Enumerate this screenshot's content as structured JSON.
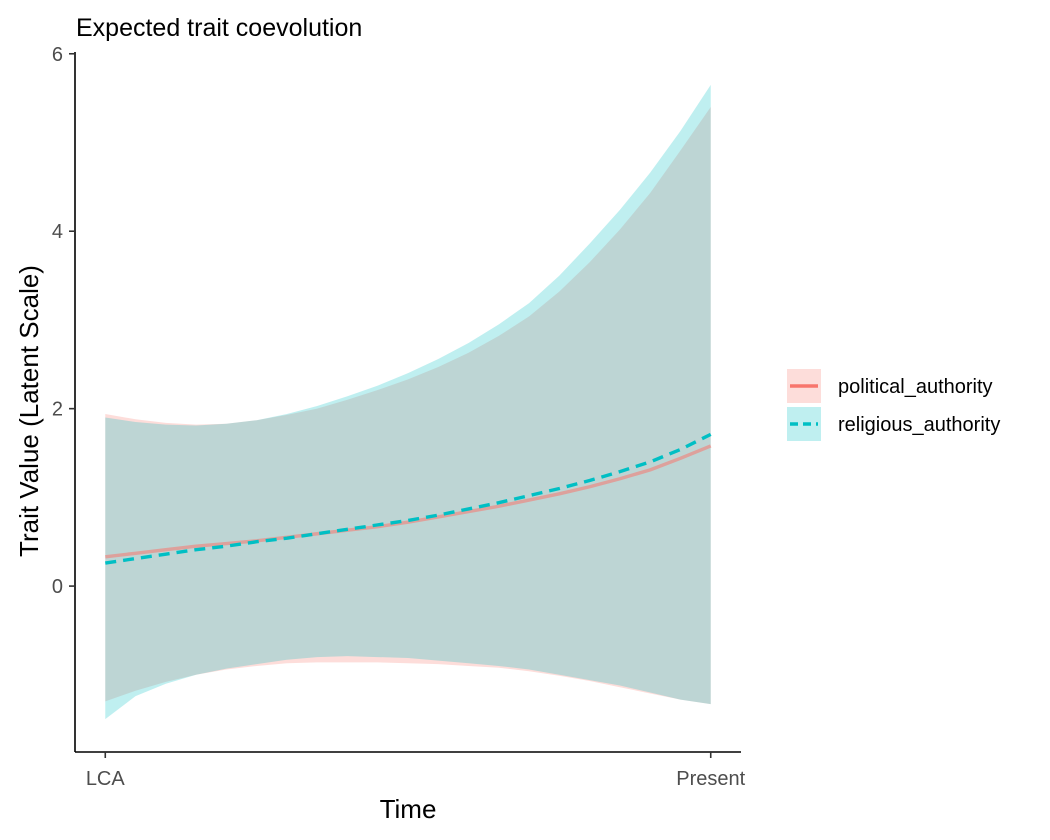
{
  "chart_data": {
    "type": "line",
    "title": "Expected trait coevolution",
    "xlabel": "Time",
    "ylabel": "Trait Value (Latent Scale)",
    "x_ticks": [
      {
        "value": 0,
        "label": "LCA"
      },
      {
        "value": 1,
        "label": "Present"
      }
    ],
    "y_ticks": [
      {
        "value": 0,
        "label": "0"
      },
      {
        "value": 2,
        "label": "2"
      },
      {
        "value": 4,
        "label": "4"
      },
      {
        "value": 6,
        "label": "6"
      }
    ],
    "xlim": [
      -0.05,
      1.05
    ],
    "ylim": [
      -1.87,
      6.02
    ],
    "grid": false,
    "legend_position": "right",
    "x": [
      0,
      0.05,
      0.1,
      0.15,
      0.2,
      0.25,
      0.3,
      0.35,
      0.4,
      0.45,
      0.5,
      0.55,
      0.6,
      0.65,
      0.7,
      0.75,
      0.8,
      0.85,
      0.9,
      0.95,
      1.0
    ],
    "series": [
      {
        "name": "political_authority",
        "color": "#F8766D",
        "line_style": "solid",
        "mean": [
          0.33,
          0.37,
          0.41,
          0.45,
          0.48,
          0.51,
          0.55,
          0.59,
          0.63,
          0.67,
          0.72,
          0.78,
          0.84,
          0.9,
          0.97,
          1.04,
          1.12,
          1.21,
          1.31,
          1.44,
          1.58
        ],
        "lower": [
          -1.3,
          -1.18,
          -1.08,
          -1.0,
          -0.94,
          -0.9,
          -0.87,
          -0.86,
          -0.86,
          -0.86,
          -0.87,
          -0.88,
          -0.9,
          -0.92,
          -0.96,
          -1.01,
          -1.07,
          -1.14,
          -1.21,
          -1.28,
          -1.33
        ],
        "upper": [
          1.94,
          1.88,
          1.84,
          1.82,
          1.83,
          1.87,
          1.93,
          2.0,
          2.1,
          2.21,
          2.33,
          2.47,
          2.63,
          2.82,
          3.04,
          3.32,
          3.65,
          4.02,
          4.43,
          4.91,
          5.4
        ]
      },
      {
        "name": "religious_authority",
        "color": "#00BFC4",
        "line_style": "dashed",
        "mean": [
          0.26,
          0.31,
          0.36,
          0.41,
          0.45,
          0.5,
          0.54,
          0.59,
          0.64,
          0.69,
          0.74,
          0.8,
          0.87,
          0.94,
          1.02,
          1.1,
          1.19,
          1.29,
          1.4,
          1.54,
          1.71
        ],
        "lower": [
          -1.5,
          -1.24,
          -1.1,
          -1.0,
          -0.93,
          -0.88,
          -0.83,
          -0.8,
          -0.79,
          -0.8,
          -0.81,
          -0.84,
          -0.87,
          -0.9,
          -0.94,
          -1.0,
          -1.06,
          -1.12,
          -1.2,
          -1.28,
          -1.33
        ],
        "upper": [
          1.9,
          1.85,
          1.82,
          1.81,
          1.83,
          1.87,
          1.94,
          2.03,
          2.14,
          2.26,
          2.4,
          2.56,
          2.74,
          2.95,
          3.19,
          3.5,
          3.86,
          4.24,
          4.66,
          5.13,
          5.65
        ]
      }
    ]
  }
}
